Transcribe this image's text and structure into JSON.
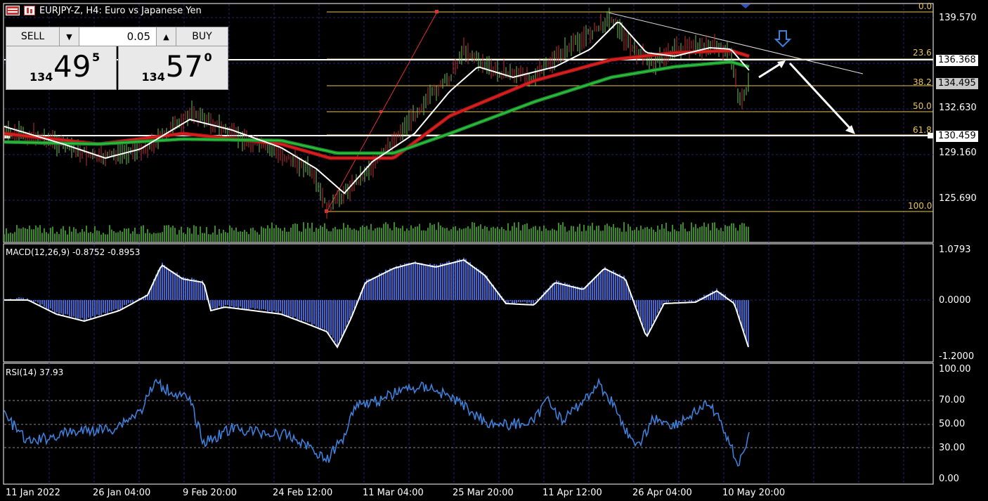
{
  "window": {
    "title": "EURJPY-Z, H4:  Euro vs Japanese Yen"
  },
  "trade_panel": {
    "sell_label": "SELL",
    "buy_label": "BUY",
    "lot": "0.05",
    "down_arrow": "▼",
    "up_arrow": "▲",
    "sell_prefix": "134",
    "sell_big": "49",
    "sell_sup": "5",
    "buy_prefix": "134",
    "buy_big": "57",
    "buy_sup": "0"
  },
  "price_axis": [
    "139.570",
    "132.630",
    "129.160",
    "125.690"
  ],
  "price_tags": {
    "upper": "136.368",
    "current": "134.495",
    "lower": "130.459"
  },
  "fib_levels": [
    "0.0",
    "23.6",
    "38.2",
    "50.0",
    "61.8",
    "100.0"
  ],
  "macd": {
    "label": "MACD(12,26,9) -0.8752 -0.8953",
    "axis": [
      "1.0793",
      "0.0000",
      "-1.2000"
    ]
  },
  "rsi": {
    "label": "RSI(14) 37.93",
    "axis": [
      "100.00",
      "70.00",
      "50.00",
      "30.00",
      "0.00"
    ]
  },
  "time_axis": [
    "11 Jan 2022",
    "26 Jan 04:00",
    "9 Feb 20:00",
    "24 Feb 12:00",
    "11 Mar 04:00",
    "25 Mar 20:00",
    "11 Apr 12:00",
    "26 Apr 04:00",
    "10 May 20:00"
  ],
  "colors": {
    "fib": "#e8c45a",
    "ma_red": "#e02020",
    "ma_green": "#30c040",
    "rsi": "#3d7fd9",
    "macd_hist": "#4466cc",
    "candle": "#3a8a2a"
  },
  "icons": [
    "chart-window-icon",
    "trade-panel-icon",
    "down-arrow-annotation-icon"
  ]
}
